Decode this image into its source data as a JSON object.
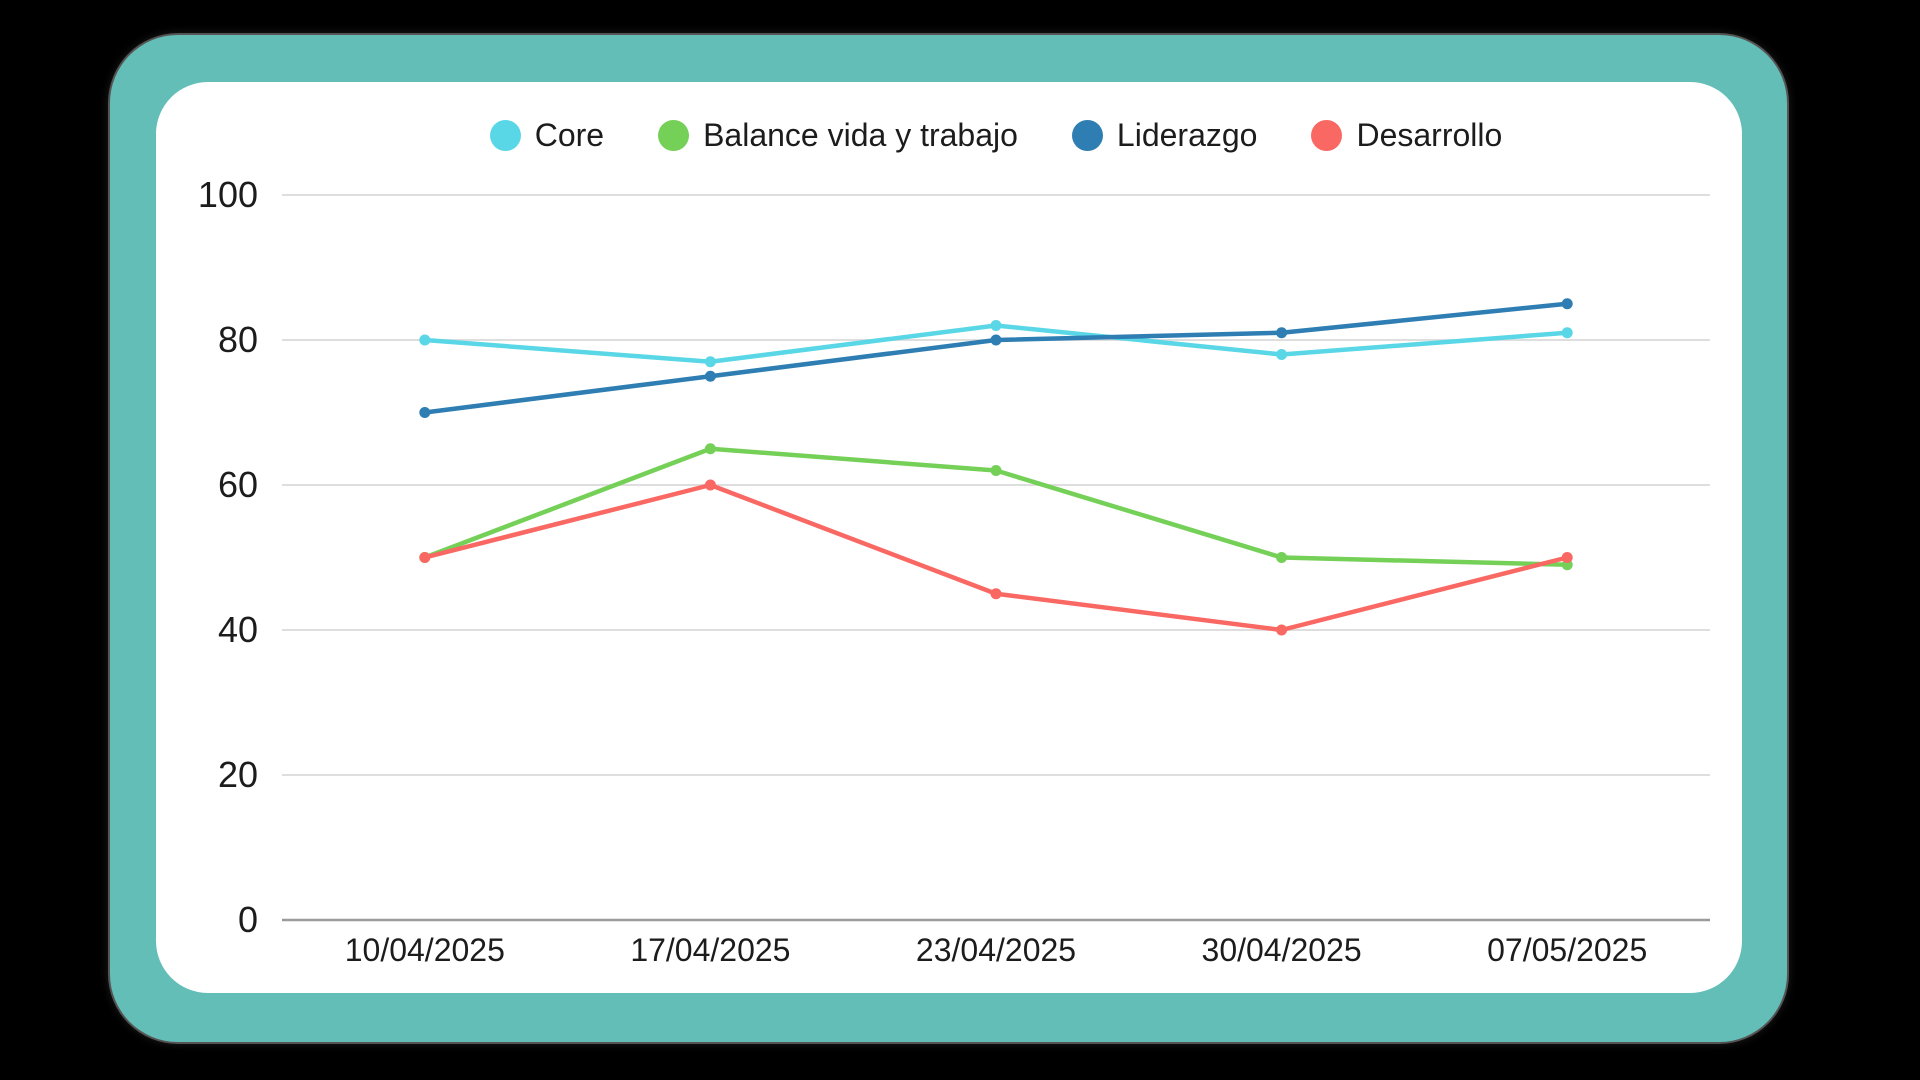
{
  "chart_data": {
    "type": "line",
    "title": "",
    "xlabel": "",
    "ylabel": "",
    "categories": [
      "10/04/2025",
      "17/04/2025",
      "23/04/2025",
      "30/04/2025",
      "07/05/2025"
    ],
    "series": [
      {
        "name": "Core",
        "color": "#59D7E6",
        "values": [
          80,
          77,
          82,
          78,
          81
        ]
      },
      {
        "name": "Balance vida y trabajo",
        "color": "#75D058",
        "values": [
          50,
          65,
          62,
          50,
          49
        ]
      },
      {
        "name": "Liderazgo",
        "color": "#2E7EB3",
        "values": [
          70,
          75,
          80,
          81,
          85
        ]
      },
      {
        "name": "Desarrollo",
        "color": "#F96862",
        "values": [
          50,
          60,
          45,
          40,
          50
        ]
      }
    ],
    "y_ticks": [
      0,
      20,
      40,
      60,
      80,
      100
    ],
    "ylim": [
      0,
      100
    ],
    "grid": true,
    "legend_position": "top"
  },
  "colors": {
    "background": "#000000",
    "frame": "#63BEB7",
    "card": "#FFFFFF",
    "gridline": "#DEDEDE",
    "axis_line": "#9B9B9B",
    "text": "#1C1C1C"
  }
}
